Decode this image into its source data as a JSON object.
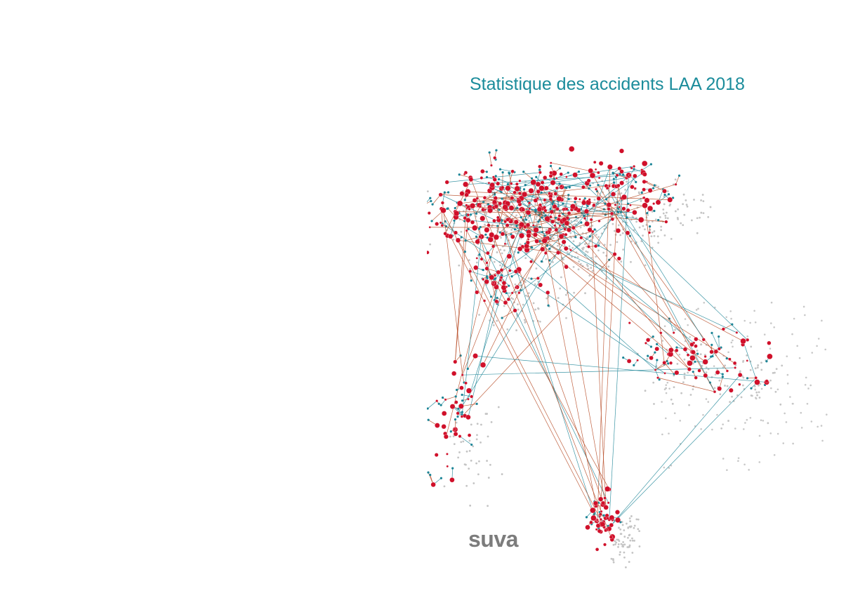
{
  "header": {
    "title": "Statistique des accidents LAA 2018"
  },
  "footer": {
    "brand": "suva"
  }
}
